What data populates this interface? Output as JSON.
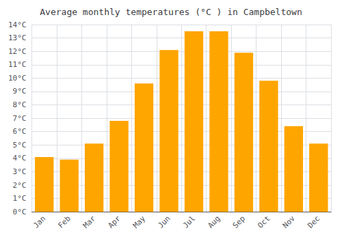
{
  "chart_data": {
    "type": "bar",
    "title": "Average monthly temperatures (°C ) in Campbeltown",
    "categories": [
      "Jan",
      "Feb",
      "Mar",
      "Apr",
      "May",
      "Jun",
      "Jul",
      "Aug",
      "Sep",
      "Oct",
      "Nov",
      "Dec"
    ],
    "values": [
      4.1,
      3.9,
      5.1,
      6.8,
      9.6,
      12.1,
      13.5,
      13.5,
      11.9,
      9.8,
      6.4,
      5.1
    ],
    "color": "#FFA500",
    "ylim": [
      0,
      14
    ],
    "yticks": [
      {
        "value": 0,
        "label": "0°C"
      },
      {
        "value": 1,
        "label": "1°C"
      },
      {
        "value": 2,
        "label": "2°C"
      },
      {
        "value": 3,
        "label": "3°C"
      },
      {
        "value": 4,
        "label": "4°C"
      },
      {
        "value": 5,
        "label": "5°C"
      },
      {
        "value": 6,
        "label": "6°C"
      },
      {
        "value": 7,
        "label": "7°C"
      },
      {
        "value": 8,
        "label": "8°C"
      },
      {
        "value": 9,
        "label": "9°C"
      },
      {
        "value": 10,
        "label": "10°C"
      },
      {
        "value": 11,
        "label": "11°C"
      },
      {
        "value": 12,
        "label": "12°C"
      },
      {
        "value": 13,
        "label": "13°C"
      },
      {
        "value": 14,
        "label": "14°C"
      }
    ],
    "grid": true
  }
}
